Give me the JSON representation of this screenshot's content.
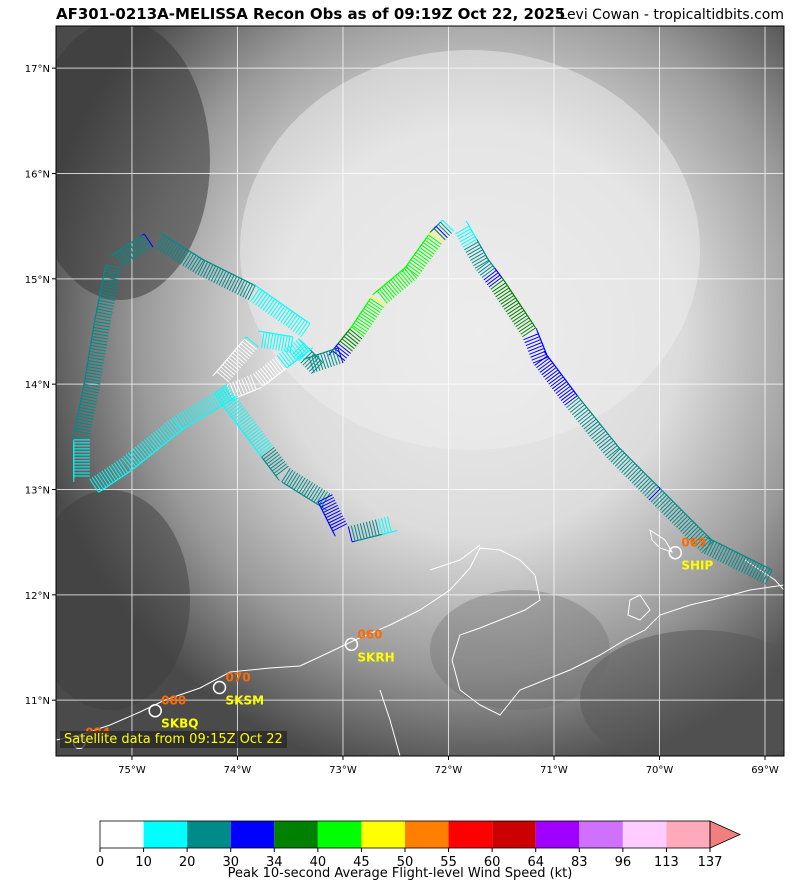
{
  "header": {
    "title": "AF301-0213A-MELISSA Recon Obs as of 09:19Z Oct 22, 2025",
    "credit": "Levi Cowan - tropicaltidbits.com"
  },
  "map": {
    "lon_range": [
      -75.72,
      -68.82
    ],
    "lat_range": [
      10.47,
      17.4
    ],
    "lon_ticks": [
      {
        "value": -75,
        "label": "75°W"
      },
      {
        "value": -74,
        "label": "74°W"
      },
      {
        "value": -73,
        "label": "73°W"
      },
      {
        "value": -72,
        "label": "72°W"
      },
      {
        "value": -71,
        "label": "71°W"
      },
      {
        "value": -70,
        "label": "70°W"
      },
      {
        "value": -69,
        "label": "69°W"
      }
    ],
    "lat_ticks": [
      {
        "value": 11,
        "label": "11°N"
      },
      {
        "value": 12,
        "label": "12°N"
      },
      {
        "value": 13,
        "label": "13°N"
      },
      {
        "value": 14,
        "label": "14°N"
      },
      {
        "value": 15,
        "label": "15°N"
      },
      {
        "value": 16,
        "label": "16°N"
      },
      {
        "value": 17,
        "label": "17°N"
      }
    ],
    "grid": true,
    "satellite_label": "Satellite data from 09:15Z Oct 22",
    "stations": [
      {
        "code": "SHIP",
        "value": "069",
        "lon": -69.85,
        "lat": 12.4
      },
      {
        "code": "SKRH",
        "value": "060",
        "lon": -72.92,
        "lat": 11.53
      },
      {
        "code": "SKSM",
        "value": "070",
        "lon": -74.17,
        "lat": 11.12
      },
      {
        "code": "SKBQ",
        "value": "080",
        "lon": -74.78,
        "lat": 10.9
      },
      {
        "code": "",
        "value": "084",
        "lon": -75.5,
        "lat": 10.6
      }
    ],
    "flight_track": [
      {
        "lon": -69.0,
        "lat": 12.1,
        "kt": 25
      },
      {
        "lon": -69.6,
        "lat": 12.4,
        "kt": 25
      },
      {
        "lon": -70.1,
        "lat": 12.9,
        "kt": 30
      },
      {
        "lon": -70.5,
        "lat": 13.3,
        "kt": 25
      },
      {
        "lon": -70.9,
        "lat": 13.8,
        "kt": 30
      },
      {
        "lon": -71.2,
        "lat": 14.2,
        "kt": 30
      },
      {
        "lon": -71.3,
        "lat": 14.45,
        "kt": 34
      },
      {
        "lon": -71.6,
        "lat": 14.9,
        "kt": 34
      },
      {
        "lon": -71.75,
        "lat": 15.1,
        "kt": 25
      },
      {
        "lon": -71.95,
        "lat": 15.45,
        "kt": 15
      },
      {
        "lon": -72.05,
        "lat": 15.35,
        "kt": 45
      },
      {
        "lon": -72.3,
        "lat": 15.0,
        "kt": 40
      },
      {
        "lon": -72.6,
        "lat": 14.75,
        "kt": 45
      },
      {
        "lon": -72.8,
        "lat": 14.45,
        "kt": 40
      },
      {
        "lon": -73.0,
        "lat": 14.2,
        "kt": 30
      },
      {
        "lon": -73.3,
        "lat": 14.1,
        "kt": 25
      },
      {
        "lon": -73.5,
        "lat": 14.3,
        "kt": 15
      },
      {
        "lon": -73.8,
        "lat": 14.35,
        "kt": 10
      },
      {
        "lon": -74.1,
        "lat": 14.0,
        "kt": 5
      },
      {
        "lon": -73.85,
        "lat": 14.1,
        "kt": 5
      },
      {
        "lon": -73.4,
        "lat": 14.45,
        "kt": 15
      },
      {
        "lon": -73.9,
        "lat": 14.8,
        "kt": 20
      },
      {
        "lon": -74.4,
        "lat": 15.05,
        "kt": 25
      },
      {
        "lon": -74.8,
        "lat": 15.3,
        "kt": 30
      },
      {
        "lon": -75.1,
        "lat": 15.1,
        "kt": 25
      },
      {
        "lon": -75.2,
        "lat": 14.6,
        "kt": 20
      },
      {
        "lon": -75.3,
        "lat": 14.0,
        "kt": 25
      },
      {
        "lon": -75.4,
        "lat": 13.5,
        "kt": 20
      },
      {
        "lon": -75.4,
        "lat": 13.1,
        "kt": 15
      },
      {
        "lon": -75.1,
        "lat": 13.3,
        "kt": 15
      },
      {
        "lon": -74.6,
        "lat": 13.7,
        "kt": 15
      },
      {
        "lon": -74.1,
        "lat": 14.0,
        "kt": 15
      },
      {
        "lon": -73.8,
        "lat": 13.6,
        "kt": 15
      },
      {
        "lon": -73.5,
        "lat": 13.2,
        "kt": 25
      },
      {
        "lon": -73.1,
        "lat": 12.95,
        "kt": 30
      },
      {
        "lon": -72.95,
        "lat": 12.65,
        "kt": 30
      },
      {
        "lon": -72.55,
        "lat": 12.75,
        "kt": 15
      }
    ]
  },
  "colorbar": {
    "ticks": [
      "0",
      "10",
      "20",
      "30",
      "34",
      "40",
      "45",
      "50",
      "55",
      "60",
      "64",
      "83",
      "96",
      "113",
      "137"
    ],
    "colors": [
      "#ffffff",
      "#00ffff",
      "#008b8b",
      "#0000ff",
      "#008000",
      "#00ff00",
      "#ffff00",
      "#ff7f00",
      "#ff0000",
      "#cc0000",
      "#a000ff",
      "#d070ff",
      "#ffccff",
      "#ffaabb"
    ],
    "extend_color": "#f08080",
    "label": "Peak 10-second Average Flight-level Wind Speed (kt)"
  }
}
